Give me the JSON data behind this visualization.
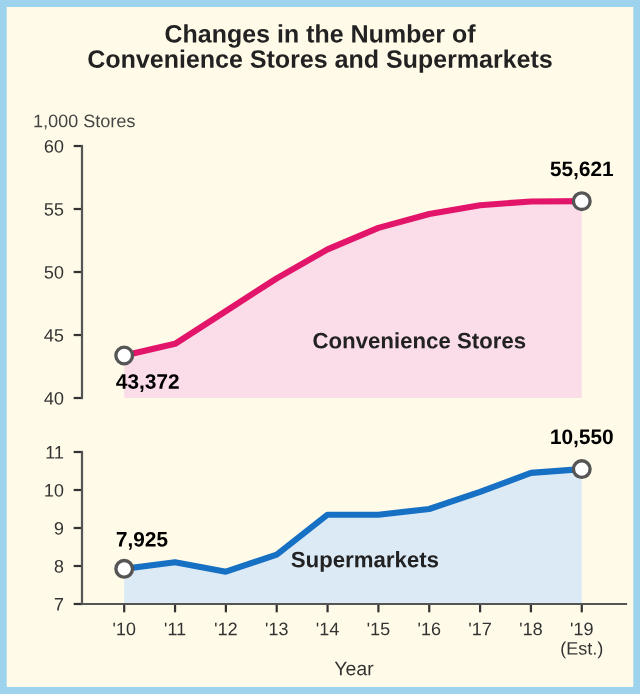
{
  "chart_data": [
    {
      "type": "area",
      "title": "Changes in the Number of\nConvenience Stores and Supermarkets",
      "ylabel": "1,000 Stores",
      "categories": [
        null,
        null,
        null,
        null,
        null,
        null,
        null,
        null,
        null,
        null
      ],
      "series": [
        {
          "name": "Convenience Stores",
          "color": "#e2156b",
          "values": [
            43.372,
            44.3,
            46.9,
            49.5,
            51.8,
            53.5,
            54.6,
            55.3,
            55.6,
            55.621
          ]
        }
      ],
      "annotations": [
        {
          "text": "43,372",
          "y": 43.372
        },
        {
          "text": "55,621",
          "y": 55.621
        }
      ],
      "ylim": [
        40,
        60
      ],
      "yticks": [
        40,
        45,
        50,
        55,
        60
      ],
      "tick_labels": "y",
      "grid": false
    },
    {
      "type": "area",
      "xlabel": "Year",
      "categories": [
        "'10",
        "'11",
        "'12",
        "'13",
        "'14",
        "'15",
        "'16",
        "'17",
        "'18",
        "'19\n(Est.)"
      ],
      "series": [
        {
          "name": "Supermarkets",
          "color": "#1670c4",
          "values": [
            7.925,
            8.1,
            7.85,
            8.3,
            9.35,
            9.35,
            9.5,
            9.95,
            10.45,
            10.55
          ]
        }
      ],
      "annotations": [
        {
          "text": "7,925",
          "x": "'10",
          "y": 7.925
        },
        {
          "text": "10,550",
          "x": "'19\n(Est.)",
          "y": 10.55
        }
      ],
      "ylim": [
        7,
        11
      ],
      "yticks": [
        7,
        8,
        9,
        10,
        11
      ],
      "grid": false
    }
  ]
}
